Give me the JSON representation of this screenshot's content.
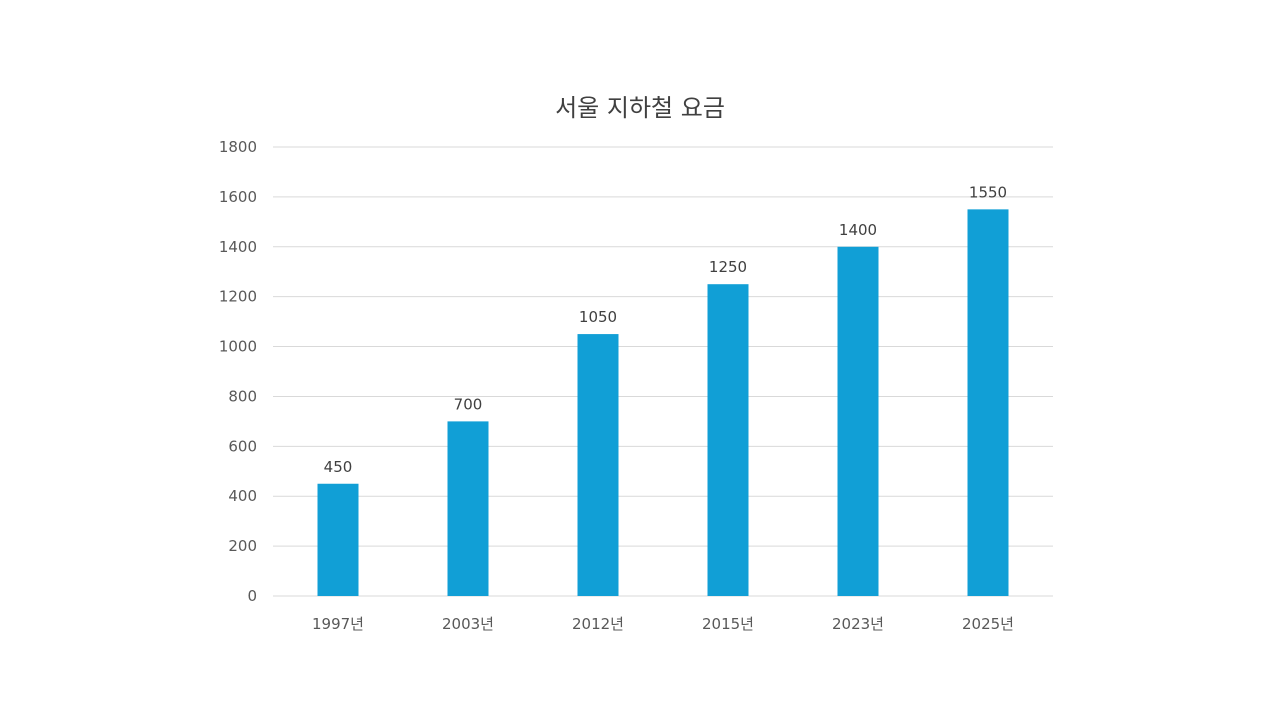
{
  "chart_data": {
    "type": "bar",
    "title": "서울 지하철 요금",
    "categories": [
      "1997년",
      "2003년",
      "2012년",
      "2015년",
      "2023년",
      "2025년"
    ],
    "values": [
      450,
      700,
      1050,
      1250,
      1400,
      1550
    ],
    "data_labels": [
      "450",
      "700",
      "1050",
      "1250",
      "1400",
      "1550"
    ],
    "y_ticks": [
      0,
      200,
      400,
      600,
      800,
      1000,
      1200,
      1400,
      1600,
      1800
    ],
    "ylim": [
      0,
      1800
    ],
    "xlabel": "",
    "ylabel": "",
    "grid": true,
    "legend": "none",
    "bar_color": "#119FD6"
  }
}
